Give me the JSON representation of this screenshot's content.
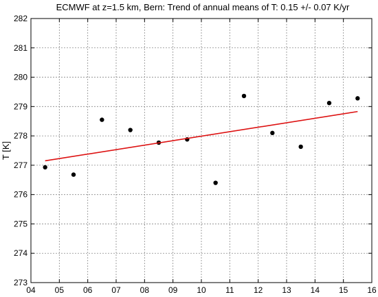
{
  "chart_data": {
    "type": "scatter",
    "title": "ECMWF at z=1.5 km, Bern: Trend of annual means of T: 0.15 +/- 0.07 K/yr",
    "xlabel": "",
    "ylabel": "T [K]",
    "xlim": [
      4,
      16
    ],
    "ylim": [
      273,
      282
    ],
    "grid": true,
    "x_ticks": [
      4,
      5,
      6,
      7,
      8,
      9,
      10,
      11,
      12,
      13,
      14,
      15,
      16
    ],
    "x_tick_labels": [
      "04",
      "05",
      "06",
      "07",
      "08",
      "09",
      "10",
      "11",
      "12",
      "13",
      "14",
      "15",
      "16"
    ],
    "y_ticks": [
      273,
      274,
      275,
      276,
      277,
      278,
      279,
      280,
      281,
      282
    ],
    "y_tick_labels": [
      "273",
      "274",
      "275",
      "276",
      "277",
      "278",
      "279",
      "280",
      "281",
      "282"
    ],
    "series": [
      {
        "kind": "points",
        "color": "#000000",
        "x": [
          4.5,
          5.5,
          6.5,
          7.5,
          8.5,
          9.5,
          10.5,
          11.5,
          12.5,
          13.5,
          14.5,
          15.5
        ],
        "y": [
          276.93,
          276.68,
          278.55,
          278.2,
          277.77,
          277.88,
          276.4,
          279.36,
          278.1,
          277.63,
          279.12,
          279.28
        ]
      },
      {
        "kind": "trend-line",
        "color": "#dd1111",
        "x": [
          4.5,
          15.5
        ],
        "y": [
          277.15,
          278.83
        ]
      }
    ]
  }
}
